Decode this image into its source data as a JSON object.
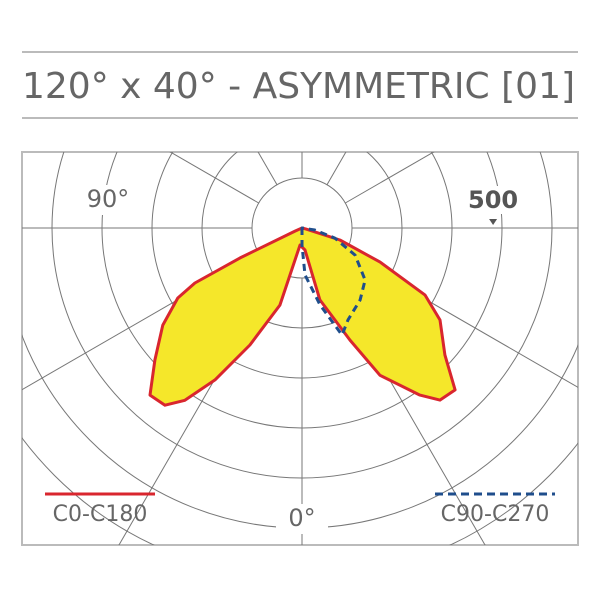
{
  "chart_data": {
    "type": "polar",
    "title": "120° x 40° - ASYMMETRIC [01]",
    "rlim": [
      0,
      785
    ],
    "rticks": [
      500
    ],
    "angle_ticks": [
      {
        "value": -90,
        "label": "90°"
      },
      {
        "value": 0,
        "label": "0°"
      }
    ],
    "series": [
      {
        "name": "C0-C180",
        "color": "#d9262e",
        "fill": "#f5e72a",
        "dashed": false,
        "angles": [
          -66,
          -64.2,
          -62.8,
          -60.6,
          -55.1,
          -48.1,
          -42.3,
          -37.7,
          -34.2,
          -29.8,
          -24,
          -16,
          -6.7,
          7.8,
          14,
          23.2,
          27.9,
          35.2,
          38.7,
          43.4,
          48.4,
          56.3,
          61.4,
          66.4,
          72.5,
          76
        ],
        "values": [
          20,
          180,
          315,
          373,
          444,
          517,
          591,
          586,
          545,
          458,
          335,
          210,
          45,
          58,
          194,
          319,
          436,
          535,
          577,
          583,
          500,
          434,
          367,
          223,
          104,
          10
        ]
      },
      {
        "name": "C90-C270",
        "color": "#1f4e8c",
        "fill": "none",
        "dashed": true,
        "angles": [
          0,
          3.7,
          13.2,
          20.5,
          26.6,
          38.9,
          50.5,
          63,
          73,
          81
        ],
        "values": [
          45,
          123,
          207,
          299,
          269,
          242,
          214,
          156,
          90,
          34
        ]
      }
    ]
  }
}
